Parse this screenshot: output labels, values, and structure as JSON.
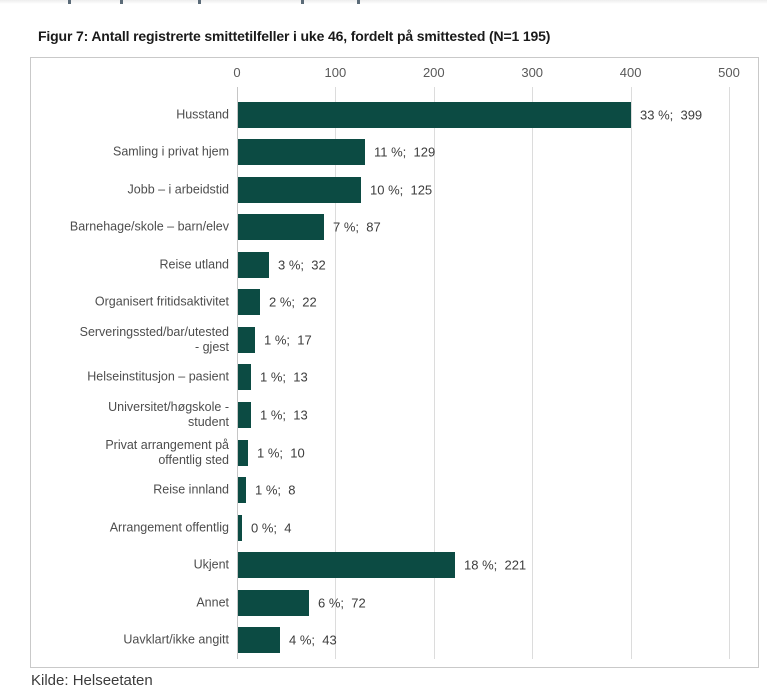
{
  "page": {
    "title": "Figur 7: Antall registrerte smittetilfeller i uke 46, fordelt på smittested (N=1 195)",
    "source_note": "Kilde: Helseetaten"
  },
  "chart_data": {
    "type": "bar",
    "orientation": "horizontal",
    "title": "Figur 7: Antall registrerte smittetilfeller i uke 46, fordelt på smittested (N=1 195)",
    "n_label": "N=1 195",
    "xlim": [
      0,
      500
    ],
    "x_ticks": [
      0,
      100,
      200,
      300,
      400,
      500
    ],
    "grid": true,
    "legend": "none",
    "categories": [
      "Husstand",
      "Samling i privat hjem",
      "Jobb – i arbeidstid",
      "Barnehage/skole – barn/elev",
      "Reise utland",
      "Organisert fritidsaktivitet",
      "Serveringssted/bar/utested\n- gjest",
      "Helseinstitusjon – pasient",
      "Universitet/høgskole -\nstudent",
      "Privat arrangement på\noffentlig sted",
      "Reise innland",
      "Arrangement offentlig",
      "Ukjent",
      "Annet",
      "Uavklart/ikke angitt"
    ],
    "values": [
      399,
      129,
      125,
      87,
      32,
      22,
      17,
      13,
      13,
      10,
      8,
      4,
      221,
      72,
      43
    ],
    "percents": [
      33,
      11,
      10,
      7,
      3,
      2,
      1,
      1,
      1,
      1,
      1,
      0,
      18,
      6,
      4
    ],
    "value_labels": [
      "33 %;  399",
      "11 %;  129",
      "10 %;  125",
      "7 %;  87",
      "3 %;  32",
      "2 %;  22",
      "1 %;  17",
      "1 %;  13",
      "1 %;  13",
      "1 %;  10",
      "1 %;  8",
      "0 %;  4",
      "18 %;  221",
      "6 %;  72",
      "4 %;  43"
    ],
    "source": "Kilde: Helseetaten"
  },
  "colors": {
    "bar": "#0c4b43",
    "gridline": "#dcdcdc",
    "zero_line": "#c6c6c6",
    "border": "#c9c9c9",
    "title_text": "#1a1a1a",
    "axis_text": "#595959",
    "category_text": "#4d4d4d",
    "value_text": "#3d3d3d",
    "source_text": "#3c3c3c"
  }
}
